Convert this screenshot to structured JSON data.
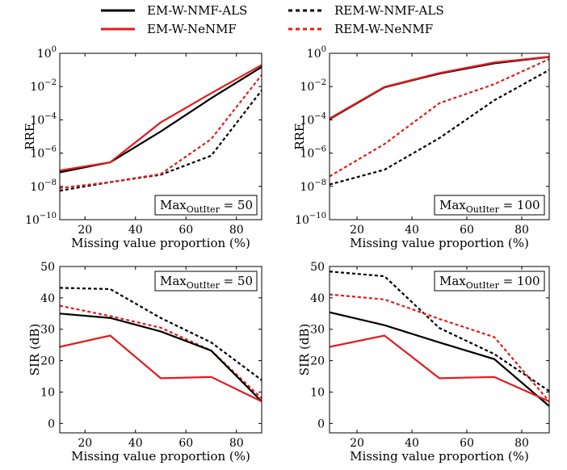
{
  "legend": {
    "entries": [
      {
        "label": "EM-W-NMF-ALS",
        "color": "#000000",
        "dashed": false
      },
      {
        "label": "REM-W-NMF-ALS",
        "color": "#000000",
        "dashed": true
      },
      {
        "label": "EM-W-NeNMF",
        "color": "#e41a1c",
        "dashed": false
      },
      {
        "label": "REM-W-NeNMF",
        "color": "#e41a1c",
        "dashed": true
      }
    ]
  },
  "chart_data": [
    {
      "type": "line",
      "xlabel": "Missing value proportion (%)",
      "ylabel": "RRE",
      "yscale": "log",
      "xlim": [
        10,
        90
      ],
      "ylim": [
        1e-10,
        1
      ],
      "xticks": [
        20,
        40,
        60,
        80
      ],
      "yticks": [
        {
          "v": 1e-10,
          "e": "−10"
        },
        {
          "v": 1e-08,
          "e": "−8"
        },
        {
          "v": 1e-06,
          "e": "−6"
        },
        {
          "v": 0.0001,
          "e": "−4"
        },
        {
          "v": 0.01,
          "e": "−2"
        },
        {
          "v": 1,
          "e": "0"
        }
      ],
      "annotation": {
        "base": "Max",
        "sub": "OutIter",
        "rest": " = 50",
        "position": "bottom-right"
      },
      "x": [
        10,
        30,
        50,
        70,
        90
      ],
      "series": [
        {
          "name": "EM-W-NMF-ALS",
          "values": [
            7e-08,
            2.8e-07,
            2e-05,
            0.002,
            0.15
          ]
        },
        {
          "name": "EM-W-NeNMF",
          "values": [
            9e-08,
            2.8e-07,
            7e-05,
            0.004,
            0.2
          ]
        },
        {
          "name": "REM-W-NMF-ALS",
          "values": [
            5.5e-09,
            1.8e-08,
            5e-08,
            7e-07,
            0.006
          ]
        },
        {
          "name": "REM-W-NeNMF",
          "values": [
            8e-09,
            1.8e-08,
            5.5e-08,
            7e-06,
            0.05
          ]
        }
      ]
    },
    {
      "type": "line",
      "xlabel": "Missing value proportion (%)",
      "ylabel": "RRE",
      "yscale": "log",
      "xlim": [
        10,
        90
      ],
      "ylim": [
        1e-10,
        1
      ],
      "xticks": [
        20,
        40,
        60,
        80
      ],
      "yticks": [
        {
          "v": 1e-10,
          "e": "−10"
        },
        {
          "v": 1e-08,
          "e": "−8"
        },
        {
          "v": 1e-06,
          "e": "−6"
        },
        {
          "v": 0.0001,
          "e": "−4"
        },
        {
          "v": 0.01,
          "e": "−2"
        },
        {
          "v": 1,
          "e": "0"
        }
      ],
      "annotation": {
        "base": "Max",
        "sub": "OutIter",
        "rest": " = 100",
        "position": "bottom-right"
      },
      "x": [
        10,
        30,
        50,
        70,
        90
      ],
      "series": [
        {
          "name": "EM-W-NMF-ALS",
          "values": [
            0.00011,
            0.009,
            0.06,
            0.25,
            0.6
          ]
        },
        {
          "name": "EM-W-NeNMF",
          "values": [
            0.00012,
            0.0095,
            0.065,
            0.28,
            0.62
          ]
        },
        {
          "name": "REM-W-NMF-ALS",
          "values": [
            1.3e-08,
            1e-07,
            8e-06,
            0.0015,
            0.1
          ]
        },
        {
          "name": "REM-W-NeNMF",
          "values": [
            4e-08,
            3.5e-06,
            0.001,
            0.014,
            0.45
          ]
        }
      ]
    },
    {
      "type": "line",
      "xlabel": "Missing value proportion (%)",
      "ylabel": "SIR (dB)",
      "yscale": "linear",
      "xlim": [
        10,
        90
      ],
      "ylim": [
        -3,
        50
      ],
      "xticks": [
        20,
        40,
        60,
        80
      ],
      "yticks": [
        {
          "v": 0,
          "t": "0"
        },
        {
          "v": 10,
          "t": "10"
        },
        {
          "v": 20,
          "t": "20"
        },
        {
          "v": 30,
          "t": "30"
        },
        {
          "v": 40,
          "t": "40"
        },
        {
          "v": 50,
          "t": "50"
        }
      ],
      "annotation": {
        "base": "Max",
        "sub": "OutIter",
        "rest": " = 50",
        "position": "top-right"
      },
      "x": [
        10,
        30,
        50,
        70,
        90
      ],
      "series": [
        {
          "name": "EM-W-NMF-ALS",
          "values": [
            35,
            33.6,
            29.3,
            23.2,
            7
          ]
        },
        {
          "name": "EM-W-NeNMF",
          "values": [
            24.4,
            28,
            14.4,
            14.8,
            7
          ]
        },
        {
          "name": "REM-W-NMF-ALS",
          "values": [
            43.2,
            42.8,
            33.6,
            25.8,
            13.8
          ]
        },
        {
          "name": "REM-W-NeNMF",
          "values": [
            37.5,
            34.2,
            30.5,
            23.2,
            8
          ]
        }
      ]
    },
    {
      "type": "line",
      "xlabel": "Missing value proportion (%)",
      "ylabel": "SIR (dB)",
      "yscale": "linear",
      "xlim": [
        10,
        90
      ],
      "ylim": [
        -3,
        50
      ],
      "xticks": [
        20,
        40,
        60,
        80
      ],
      "yticks": [
        {
          "v": 0,
          "t": "0"
        },
        {
          "v": 10,
          "t": "10"
        },
        {
          "v": 20,
          "t": "20"
        },
        {
          "v": 30,
          "t": "30"
        },
        {
          "v": 40,
          "t": "40"
        },
        {
          "v": 50,
          "t": "50"
        }
      ],
      "annotation": {
        "base": "Max",
        "sub": "OutIter",
        "rest": " = 100",
        "position": "top-right"
      },
      "x": [
        10,
        30,
        50,
        70,
        90
      ],
      "series": [
        {
          "name": "EM-W-NMF-ALS",
          "values": [
            35.4,
            31.3,
            25.8,
            20.5,
            5.5
          ]
        },
        {
          "name": "EM-W-NeNMF",
          "values": [
            24.4,
            28,
            14.4,
            14.8,
            7
          ]
        },
        {
          "name": "REM-W-NMF-ALS",
          "values": [
            48.4,
            46.9,
            30.4,
            22.1,
            10.3
          ]
        },
        {
          "name": "REM-W-NeNMF",
          "values": [
            41.1,
            39.5,
            33.3,
            27.5,
            7
          ]
        }
      ]
    }
  ]
}
